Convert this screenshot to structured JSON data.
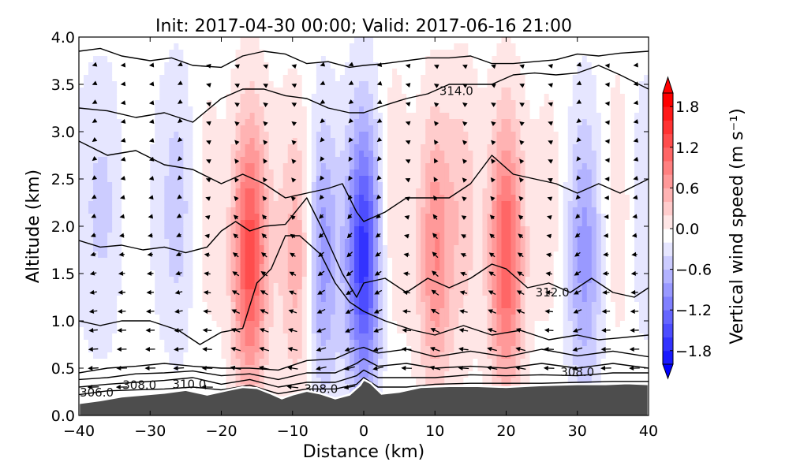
{
  "chart_data": {
    "type": "heatmap",
    "title": "Init: 2017-04-30 00:00; Valid: 2017-06-16 21:00",
    "xlabel": "Distance (km)",
    "ylabel": "Altitude (km)",
    "xlim": [
      -40,
      40
    ],
    "ylim": [
      0.0,
      4.0
    ],
    "xticks": [
      -40,
      -30,
      -20,
      -10,
      0,
      10,
      20,
      30,
      40
    ],
    "xtick_labels": [
      "−40",
      "−30",
      "−20",
      "−10",
      "0",
      "10",
      "20",
      "30",
      "40"
    ],
    "yticks": [
      0.0,
      0.5,
      1.0,
      1.5,
      2.0,
      2.5,
      3.0,
      3.5,
      4.0
    ],
    "ytick_labels": [
      "0.0",
      "0.5",
      "1.0",
      "1.5",
      "2.0",
      "2.5",
      "3.0",
      "3.5",
      "4.0"
    ],
    "colorbar": {
      "label": "Vertical wind speed (m s⁻¹)",
      "range": [
        -2.0,
        2.0
      ],
      "ticks": [
        1.8,
        1.2,
        0.6,
        0.0,
        -0.6,
        -1.2,
        -1.8
      ],
      "tick_labels": [
        "1.8",
        "1.2",
        "0.6",
        "0.0",
        "−0.6",
        "−1.2",
        "−1.8"
      ],
      "extend": "both",
      "colormap": "bwr",
      "negative_color": "#0000ff",
      "positive_color": "#ff0000"
    },
    "vertical_wind_bands": [
      {
        "x": -39,
        "w": -0.2
      },
      {
        "x": -36,
        "w": -0.3
      },
      {
        "x": -33,
        "w": 0.05
      },
      {
        "x": -29,
        "w": -0.1
      },
      {
        "x": -26,
        "w": -0.4
      },
      {
        "x": -22,
        "w": 0.2
      },
      {
        "x": -16,
        "w": 1.4
      },
      {
        "x": -12,
        "w": 0.1
      },
      {
        "x": -9,
        "w": 0.7
      },
      {
        "x": -6,
        "w": -0.9
      },
      {
        "x": 0,
        "w": -1.6
      },
      {
        "x": 4,
        "w": 0.3
      },
      {
        "x": 10,
        "w": 0.9
      },
      {
        "x": 14,
        "w": 0.4
      },
      {
        "x": 20,
        "w": 1.3
      },
      {
        "x": 26,
        "w": 0.2
      },
      {
        "x": 31,
        "w": -0.8
      },
      {
        "x": 36,
        "w": 0.3
      },
      {
        "x": 39,
        "w": -0.3
      }
    ],
    "terrain": {
      "color": "#4d4d4d",
      "x": [
        -40,
        -37,
        -34,
        -31,
        -28,
        -25,
        -22,
        -19,
        -17,
        -15,
        -13,
        -11.5,
        -10,
        -8,
        -6,
        -4,
        -2,
        -0.5,
        0,
        1,
        2.5,
        5,
        8,
        12,
        16,
        20,
        25,
        30,
        34,
        37,
        40
      ],
      "alt": [
        0.13,
        0.16,
        0.2,
        0.22,
        0.24,
        0.27,
        0.22,
        0.27,
        0.3,
        0.29,
        0.23,
        0.18,
        0.22,
        0.26,
        0.23,
        0.18,
        0.22,
        0.32,
        0.38,
        0.34,
        0.23,
        0.25,
        0.3,
        0.31,
        0.31,
        0.3,
        0.32,
        0.33,
        0.33,
        0.34,
        0.33
      ]
    },
    "contours": [
      {
        "level": 306.0,
        "label": "306.0",
        "x": [
          -40,
          -36,
          -32,
          -28,
          -24,
          -20,
          -16,
          -12,
          -8,
          -4,
          -1,
          0,
          2,
          6,
          10,
          15,
          20,
          25,
          30,
          35,
          40
        ],
        "alt": [
          0.22,
          0.26,
          0.27,
          0.28,
          0.3,
          0.27,
          0.32,
          0.23,
          0.28,
          0.28,
          0.33,
          0.4,
          0.3,
          0.3,
          0.33,
          0.34,
          0.34,
          0.34,
          0.35,
          0.36,
          0.36
        ]
      },
      {
        "level": 308.0,
        "label": "308.0",
        "x": [
          -40,
          -36,
          -32,
          -28,
          -24,
          -20,
          -16,
          -12,
          -8,
          -4,
          -1,
          0,
          2,
          6,
          10,
          15,
          20,
          25,
          30,
          35,
          40
        ],
        "alt": [
          0.3,
          0.33,
          0.35,
          0.37,
          0.4,
          0.33,
          0.38,
          0.3,
          0.35,
          0.35,
          0.42,
          0.48,
          0.4,
          0.4,
          0.4,
          0.43,
          0.42,
          0.43,
          0.42,
          0.45,
          0.45
        ]
      },
      {
        "level": 309.0,
        "label": "",
        "x": [
          -40,
          -36,
          -32,
          -28,
          -24,
          -20,
          -16,
          -12,
          -8,
          -4,
          -1,
          0,
          2,
          6,
          10,
          15,
          20,
          25,
          30,
          35,
          40
        ],
        "alt": [
          0.38,
          0.4,
          0.44,
          0.45,
          0.47,
          0.42,
          0.44,
          0.38,
          0.45,
          0.45,
          0.55,
          0.6,
          0.52,
          0.55,
          0.5,
          0.52,
          0.5,
          0.55,
          0.5,
          0.55,
          0.5
        ]
      },
      {
        "level": 310.0,
        "label": "310.0",
        "x": [
          -40,
          -36,
          -32,
          -28,
          -24,
          -20,
          -16,
          -12,
          -8,
          -4,
          -1,
          0,
          2,
          6,
          10,
          15,
          20,
          25,
          30,
          35,
          40
        ],
        "alt": [
          0.45,
          0.5,
          0.52,
          0.55,
          0.52,
          0.5,
          0.5,
          0.48,
          0.58,
          0.6,
          0.7,
          0.72,
          0.66,
          0.7,
          0.62,
          0.68,
          0.62,
          0.7,
          0.63,
          0.68,
          0.62
        ]
      },
      {
        "level": 311.0,
        "label": "",
        "x": [
          -40,
          -37,
          -34,
          -30,
          -26,
          -23,
          -20,
          -17,
          -15,
          -13,
          -11,
          -9,
          -6,
          -4,
          -2,
          0,
          3,
          7,
          10,
          14,
          18,
          22,
          26,
          30,
          33,
          36,
          40
        ],
        "alt": [
          1.0,
          0.95,
          1.0,
          1.0,
          0.9,
          0.75,
          0.88,
          0.92,
          1.4,
          1.55,
          1.9,
          1.9,
          1.7,
          1.4,
          1.2,
          1.1,
          1.0,
          0.9,
          0.85,
          0.95,
          0.85,
          0.9,
          0.8,
          0.85,
          0.8,
          0.82,
          0.85
        ]
      },
      {
        "level": 312.0,
        "label": "312.0",
        "x": [
          -40,
          -37,
          -34,
          -31,
          -28,
          -25,
          -22,
          -20,
          -18,
          -16,
          -14,
          -11,
          -8,
          -6,
          -3,
          -1,
          0,
          3,
          6,
          9,
          12,
          15,
          18,
          20,
          23,
          26,
          29,
          32,
          35,
          38,
          40
        ],
        "alt": [
          1.85,
          1.78,
          1.8,
          1.75,
          1.78,
          1.72,
          1.78,
          1.95,
          2.05,
          1.95,
          2.0,
          2.02,
          2.3,
          2.0,
          1.5,
          1.25,
          1.4,
          1.45,
          1.3,
          1.45,
          1.35,
          1.45,
          1.6,
          1.55,
          1.35,
          1.4,
          1.3,
          1.45,
          1.3,
          1.25,
          1.35
        ]
      },
      {
        "level": 313.0,
        "label": "",
        "x": [
          -40,
          -36,
          -32,
          -28,
          -24,
          -20,
          -17,
          -14,
          -11,
          -8,
          -5,
          -3,
          -1,
          0,
          3,
          6,
          9,
          12,
          15,
          18,
          21,
          24,
          27,
          30,
          33,
          36,
          40
        ],
        "alt": [
          2.9,
          2.75,
          2.8,
          2.65,
          2.6,
          2.45,
          2.55,
          2.45,
          2.3,
          2.35,
          2.4,
          2.45,
          2.15,
          2.05,
          2.15,
          2.3,
          2.3,
          2.3,
          2.45,
          2.75,
          2.55,
          2.5,
          2.45,
          2.35,
          2.45,
          2.35,
          2.5
        ]
      },
      {
        "level": 314.0,
        "label": "314.0",
        "x": [
          -40,
          -36,
          -32,
          -28,
          -24,
          -20,
          -17,
          -14,
          -11,
          -8,
          -5,
          -2,
          0,
          3,
          6,
          9,
          12,
          15,
          18,
          21,
          24,
          27,
          30,
          33,
          36,
          40
        ],
        "alt": [
          3.25,
          3.22,
          3.15,
          3.2,
          3.1,
          3.35,
          3.45,
          3.45,
          3.38,
          3.35,
          3.25,
          3.2,
          3.2,
          3.28,
          3.35,
          3.4,
          3.5,
          3.5,
          3.5,
          3.6,
          3.62,
          3.6,
          3.62,
          3.7,
          3.6,
          3.45
        ]
      },
      {
        "level": 315.0,
        "label": "",
        "x": [
          -40,
          -37,
          -34,
          -30,
          -27,
          -24,
          -20,
          -17,
          -14,
          -11,
          -8,
          -5,
          -2,
          0,
          3,
          6,
          9,
          12,
          15,
          18,
          21,
          24,
          27,
          30,
          33,
          36,
          40
        ],
        "alt": [
          3.85,
          3.88,
          3.8,
          3.75,
          3.78,
          3.7,
          3.68,
          3.8,
          3.85,
          3.82,
          3.72,
          3.74,
          3.68,
          3.7,
          3.72,
          3.75,
          3.78,
          3.78,
          3.8,
          3.72,
          3.72,
          3.74,
          3.76,
          3.82,
          3.8,
          3.83,
          3.85
        ]
      }
    ],
    "contour_label_positions": [
      {
        "text": "306.0",
        "x": -37.5,
        "alt": 0.24
      },
      {
        "text": "308.0",
        "x": -31.5,
        "alt": 0.32
      },
      {
        "text": "310.0",
        "x": -24.5,
        "alt": 0.33
      },
      {
        "text": "308.0",
        "x": -6,
        "alt": 0.28
      },
      {
        "text": "314.0",
        "x": 13,
        "alt": 3.43
      },
      {
        "text": "312.0",
        "x": 26.5,
        "alt": 1.3
      },
      {
        "text": "308.0",
        "x": 30,
        "alt": 0.46
      }
    ],
    "quiver_grid": {
      "x_spacing_km": 4,
      "alt_levels": [
        0.3,
        0.5,
        0.7,
        0.9,
        1.1,
        1.3,
        1.5,
        1.7,
        1.9,
        2.1,
        2.3,
        2.5,
        2.7,
        2.9,
        3.1,
        3.3,
        3.5,
        3.7
      ]
    }
  }
}
